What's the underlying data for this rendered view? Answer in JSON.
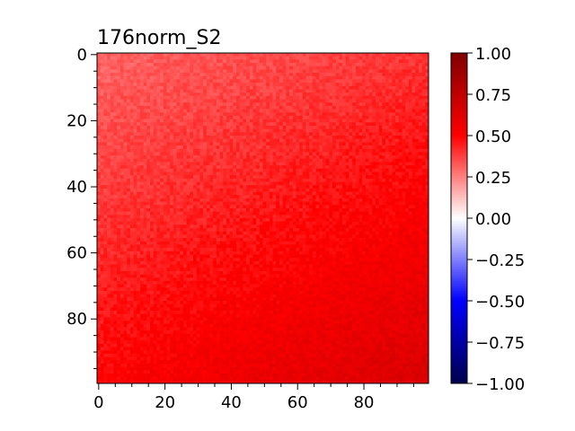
{
  "chart_data": {
    "type": "heatmap",
    "title": "176norm_S2",
    "xlabel": "",
    "ylabel": "",
    "grid_size": [
      100,
      100
    ],
    "xlim": [
      0,
      99
    ],
    "ylim": [
      99,
      0
    ],
    "x_ticks": [
      "0",
      "20",
      "40",
      "60",
      "80"
    ],
    "y_ticks": [
      "0",
      "20",
      "40",
      "60",
      "80"
    ],
    "x_tick_values": [
      0,
      20,
      40,
      60,
      80
    ],
    "y_tick_values": [
      0,
      20,
      40,
      60,
      80
    ],
    "value_trend": {
      "top_left": 0.3,
      "top_right": 0.4,
      "bottom_left": 0.5,
      "bottom_right": 0.65,
      "noise": 0.04
    },
    "colorbar": {
      "cmap": "seismic",
      "vmin": -1.0,
      "vmax": 1.0,
      "tick_values": [
        1.0,
        0.75,
        0.5,
        0.25,
        0.0,
        -0.25,
        -0.5,
        -0.75,
        -1.0
      ],
      "tick_labels": [
        "1.00",
        "0.75",
        "0.50",
        "0.25",
        "0.00",
        "−0.25",
        "−0.50",
        "−0.75",
        "−1.00"
      ]
    }
  }
}
